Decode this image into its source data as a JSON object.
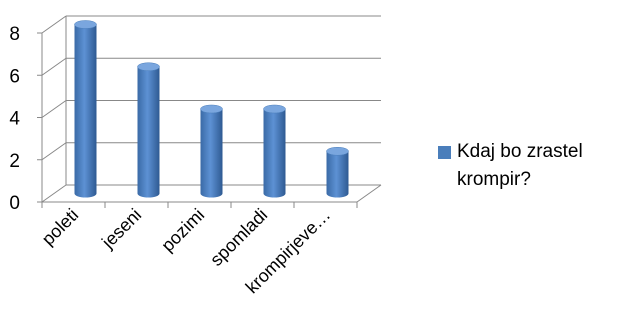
{
  "chart_data": {
    "type": "bar",
    "style": "3d-cylinder",
    "categories": [
      "poleti",
      "jeseni",
      "pozimi",
      "spomladi",
      "krompirjeve…"
    ],
    "series": [
      {
        "name": "Kdaj bo zrastel krompir?",
        "values": [
          8,
          6,
          4,
          4,
          2
        ],
        "color": "#4a7ebb"
      }
    ],
    "yticks": [
      "0",
      "2",
      "4",
      "6",
      "8"
    ],
    "ylim": [
      0,
      8
    ],
    "grid": true,
    "legend_position": "right"
  }
}
